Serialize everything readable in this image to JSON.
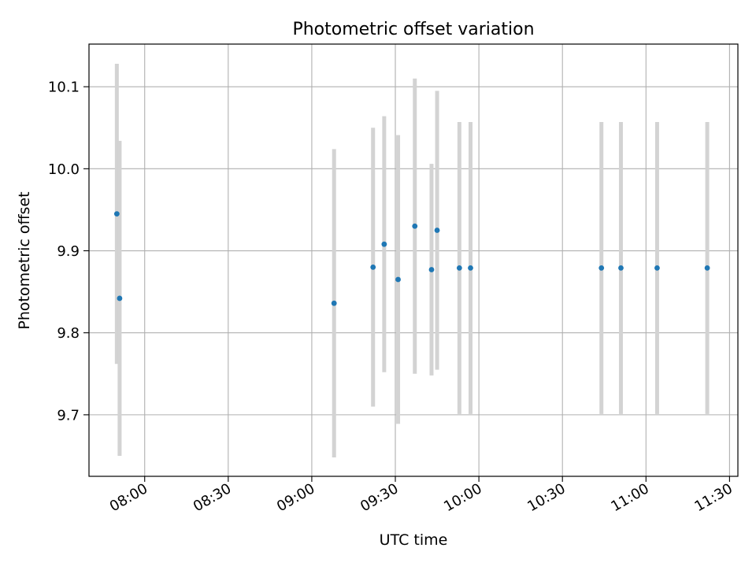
{
  "chart_data": {
    "type": "scatter",
    "title": "Photometric offset variation",
    "xlabel": "UTC time",
    "ylabel": "Photometric offset",
    "x_ticks": [
      "08:00",
      "08:30",
      "09:00",
      "09:30",
      "10:00",
      "10:30",
      "11:00",
      "11:30"
    ],
    "y_ticks": [
      "9.7",
      "9.8",
      "9.9",
      "10.0",
      "10.1"
    ],
    "xlim": [
      "07:40",
      "11:33"
    ],
    "ylim": [
      9.625,
      10.152
    ],
    "grid": true,
    "points": [
      {
        "x": "07:50",
        "y": 9.945,
        "err": 0.183
      },
      {
        "x": "07:51",
        "y": 9.842,
        "err": 0.192
      },
      {
        "x": "09:08",
        "y": 9.836,
        "err": 0.188
      },
      {
        "x": "09:22",
        "y": 9.88,
        "err": 0.17
      },
      {
        "x": "09:26",
        "y": 9.908,
        "err": 0.156
      },
      {
        "x": "09:31",
        "y": 9.865,
        "err": 0.176
      },
      {
        "x": "09:37",
        "y": 9.93,
        "err": 0.18
      },
      {
        "x": "09:43",
        "y": 9.877,
        "err": 0.129
      },
      {
        "x": "09:45",
        "y": 9.925,
        "err": 0.17
      },
      {
        "x": "09:53",
        "y": 9.879,
        "err": 0.178
      },
      {
        "x": "09:57",
        "y": 9.879,
        "err": 0.178
      },
      {
        "x": "10:44",
        "y": 9.879,
        "err": 0.178
      },
      {
        "x": "10:51",
        "y": 9.879,
        "err": 0.178
      },
      {
        "x": "11:04",
        "y": 9.879,
        "err": 0.178
      },
      {
        "x": "11:22",
        "y": 9.879,
        "err": 0.178
      }
    ],
    "marker_color": "#1f77b4",
    "errorbar_color": "#d3d3d3"
  }
}
